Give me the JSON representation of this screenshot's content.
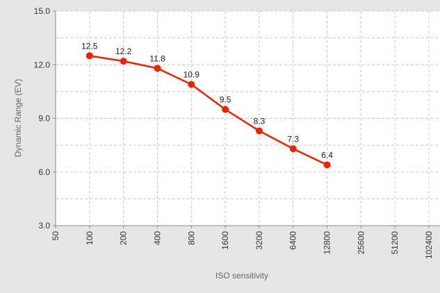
{
  "chart_data": {
    "type": "line",
    "xlabel": "ISO sensitivity",
    "ylabel": "Dynamic Range (EV)",
    "x_categories": [
      "50",
      "100",
      "200",
      "400",
      "800",
      "1600",
      "3200",
      "6400",
      "12800",
      "25600",
      "51200",
      "102400"
    ],
    "y_ticks": [
      "3.0",
      "6.0",
      "9.0",
      "12.0",
      "15.0"
    ],
    "ylim": [
      3.0,
      15.0
    ],
    "grid": true,
    "series": [
      {
        "x": [
          "100",
          "200",
          "400",
          "800",
          "1600",
          "3200",
          "6400",
          "12800"
        ],
        "values": [
          12.5,
          12.2,
          11.8,
          10.9,
          9.5,
          8.3,
          7.3,
          6.4
        ],
        "labels": [
          "12.5",
          "12.2",
          "11.8",
          "10.9",
          "9.5",
          "8.3",
          "7.3",
          "6.4"
        ],
        "color": "#ee2200"
      }
    ]
  }
}
